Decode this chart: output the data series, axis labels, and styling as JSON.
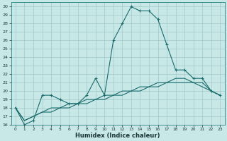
{
  "xlabel": "Humidex (Indice chaleur)",
  "bg_color": "#c8e8e8",
  "grid_color": "#a0c8c8",
  "line_color": "#1a6b6b",
  "xlim": [
    -0.5,
    23.5
  ],
  "ylim": [
    16,
    30.5
  ],
  "yticks": [
    16,
    17,
    18,
    19,
    20,
    21,
    22,
    23,
    24,
    25,
    26,
    27,
    28,
    29,
    30
  ],
  "xticks": [
    0,
    1,
    2,
    3,
    4,
    5,
    6,
    7,
    8,
    9,
    10,
    11,
    12,
    13,
    14,
    15,
    16,
    17,
    18,
    19,
    20,
    21,
    22,
    23
  ],
  "series": [
    [
      18.0,
      16.0,
      16.5,
      19.5,
      19.5,
      19.0,
      18.5,
      18.5,
      19.5,
      21.5,
      19.5,
      26.0,
      28.0,
      30.0,
      29.5,
      29.5,
      28.5,
      25.5,
      22.5,
      22.5,
      21.5,
      21.5,
      20.0,
      19.5
    ],
    [
      18.0,
      16.5,
      17.0,
      17.5,
      17.5,
      18.0,
      18.0,
      18.5,
      18.5,
      19.0,
      19.0,
      19.5,
      19.5,
      20.0,
      20.0,
      20.5,
      20.5,
      21.0,
      21.0,
      21.0,
      21.0,
      21.0,
      20.0,
      19.5
    ],
    [
      18.0,
      16.5,
      17.0,
      17.5,
      18.0,
      18.0,
      18.5,
      18.5,
      19.0,
      19.0,
      19.5,
      19.5,
      20.0,
      20.0,
      20.5,
      20.5,
      21.0,
      21.0,
      21.5,
      21.5,
      21.0,
      20.5,
      20.0,
      19.5
    ]
  ]
}
